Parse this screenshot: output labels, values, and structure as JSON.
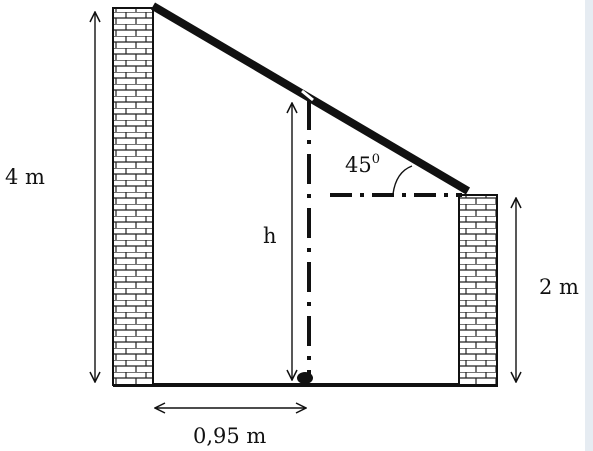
{
  "diagram": {
    "labels": {
      "left_wall_height": "4 m",
      "right_wall_height": "2 m",
      "unknown_height": "h",
      "angle": "45",
      "angle_degree_mark": "0",
      "base_distance": "0,95 m"
    },
    "colors": {
      "ink": "#111111",
      "brick_fill": "#ffffff",
      "background": "#ffffff",
      "right_edge_tint": "#e6ecf2"
    }
  }
}
